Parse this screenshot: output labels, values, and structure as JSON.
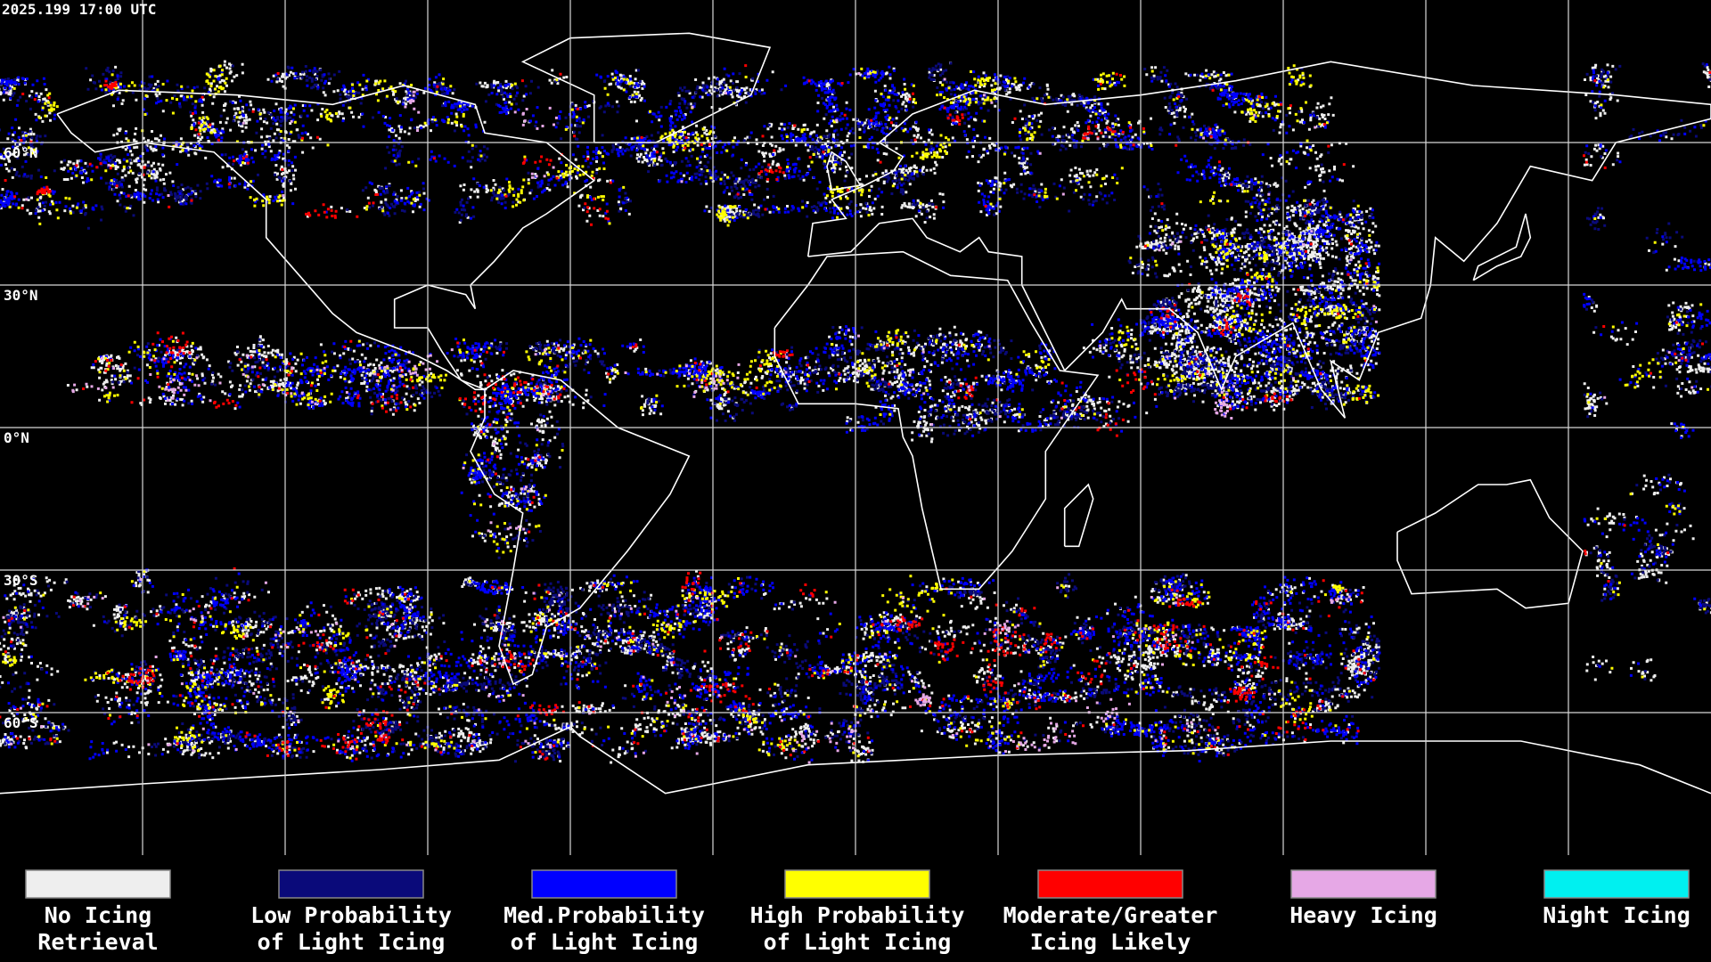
{
  "header": {
    "timestamp": "2025.199 17:00 UTC"
  },
  "map": {
    "lat_labels": [
      "60°N",
      "30°N",
      "0°N",
      "30°S",
      "60°S"
    ]
  },
  "legend": [
    {
      "color": "#eeeeee",
      "lines": [
        "No Icing",
        "Retrieval"
      ]
    },
    {
      "color": "#0a0a7a",
      "lines": [
        "Low Probability",
        "of Light Icing"
      ]
    },
    {
      "color": "#0000ff",
      "lines": [
        "Med.Probability",
        "of Light Icing"
      ]
    },
    {
      "color": "#ffff00",
      "lines": [
        "High Probability",
        "of Light Icing"
      ]
    },
    {
      "color": "#ff0000",
      "lines": [
        "Moderate/Greater",
        "Icing Likely"
      ]
    },
    {
      "color": "#e6a8e6",
      "lines": [
        "Heavy Icing"
      ]
    },
    {
      "color": "#00f0f0",
      "lines": [
        "Night Icing"
      ]
    }
  ]
}
